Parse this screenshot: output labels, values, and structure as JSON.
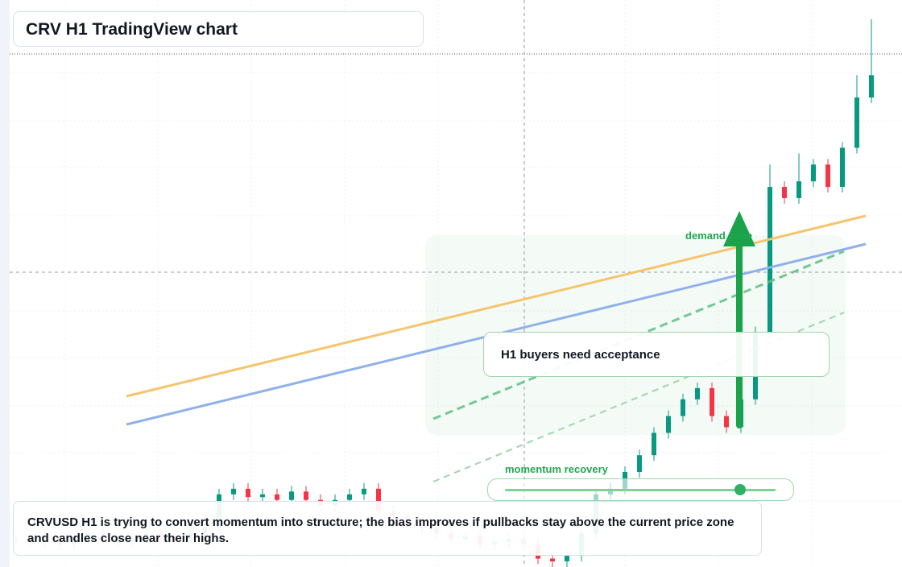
{
  "chart_data": {
    "type": "candlestick",
    "title": "CRV H1 TradingView chart",
    "annotations": [
      "demand zone",
      "H1 buyers need acceptance",
      "momentum recovery"
    ],
    "caption": "CRVUSD H1 is trying to convert momentum into structure; the bias improves if pullbacks stay above the current price zone and candles close near their highs.",
    "up_color": "#089981",
    "down_color": "#f23645",
    "ylim": [
      0,
      100
    ],
    "open": [
      5,
      5,
      4.5,
      5.5,
      4,
      5,
      6,
      5,
      4.5,
      5,
      6,
      5.5,
      5,
      6,
      7,
      13,
      14,
      12.5,
      13,
      12,
      13.5,
      12,
      11,
      12,
      13,
      14,
      10,
      9,
      8,
      7,
      6,
      5,
      5.5,
      4,
      4.5,
      5,
      4,
      1.5,
      1,
      2,
      6,
      13,
      14,
      17,
      20,
      24,
      27,
      30,
      32,
      27,
      25,
      30,
      42,
      68,
      66,
      69,
      72,
      68,
      75,
      84
    ],
    "high": [
      6,
      6,
      6.5,
      6.5,
      6,
      7,
      7,
      6,
      6,
      7,
      7,
      6.5,
      7,
      8,
      14,
      15,
      15,
      14,
      14,
      14.5,
      14.5,
      13,
      13,
      14,
      15,
      15,
      11,
      10,
      9,
      8,
      7,
      6.5,
      6.5,
      5.5,
      6,
      6,
      5,
      2.5,
      3,
      7,
      14,
      15,
      18,
      21,
      25,
      28,
      31,
      33,
      33,
      28,
      31,
      43,
      72,
      69,
      74,
      73,
      73,
      76,
      88,
      98
    ],
    "low": [
      4,
      3.5,
      3.5,
      3,
      3,
      4,
      4,
      3.5,
      3.5,
      4,
      4.5,
      4,
      4,
      5,
      6,
      12,
      11.5,
      11.5,
      11,
      11,
      11,
      10,
      10,
      11,
      12,
      9,
      8,
      7,
      6,
      5,
      4,
      4,
      3,
      3,
      3.5,
      3,
      0.5,
      0,
      0,
      1,
      5,
      12,
      13,
      16,
      19,
      23,
      26,
      29,
      26,
      24,
      24,
      29,
      41,
      65,
      65,
      68,
      67,
      67,
      74,
      83
    ],
    "close": [
      5,
      4.5,
      5.5,
      4,
      5,
      6,
      5,
      4.5,
      5,
      6,
      5.5,
      5,
      6,
      7,
      13,
      14,
      12.5,
      13,
      12,
      13.5,
      12,
      11,
      12,
      13,
      14,
      10,
      9,
      8,
      7,
      6,
      5,
      5.5,
      4,
      4.5,
      5,
      4,
      1.5,
      1,
      2,
      6,
      13,
      14,
      17,
      20,
      24,
      27,
      30,
      32,
      27,
      25,
      30,
      42,
      68,
      66,
      69,
      72,
      68,
      75,
      84,
      88
    ]
  }
}
